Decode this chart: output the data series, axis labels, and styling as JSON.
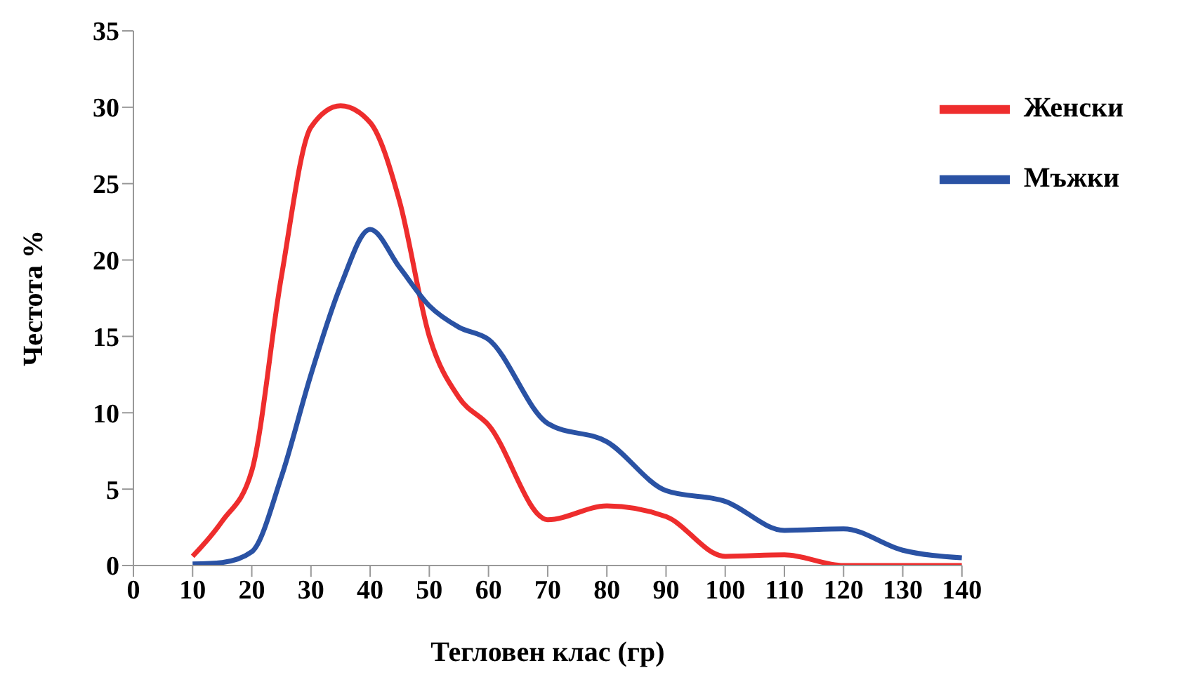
{
  "chart_data": {
    "type": "line",
    "xlabel": "Тегловен клас (гр)",
    "ylabel": "Честота %",
    "x": [
      10,
      15,
      20,
      25,
      30,
      35,
      40,
      45,
      50,
      55,
      60,
      70,
      80,
      90,
      100,
      110,
      120,
      130,
      140
    ],
    "series": [
      {
        "name": "Женски",
        "color": "#ee2d2d",
        "values": [
          0.6,
          2.9,
          6.2,
          18.9,
          28.7,
          30.1,
          29.0,
          23.8,
          15.0,
          11.0,
          9.2,
          3.0,
          3.9,
          3.2,
          0.6,
          0.7,
          0,
          0,
          0
        ]
      },
      {
        "name": "Мъжки",
        "color": "#2a52a4",
        "values": [
          0.1,
          0.2,
          0.9,
          5.8,
          12.5,
          18.3,
          22.0,
          19.5,
          17.0,
          15.6,
          14.8,
          9.3,
          8.1,
          4.9,
          4.2,
          2.3,
          2.4,
          1.0,
          0.5
        ]
      }
    ],
    "xlim": [
      0,
      140
    ],
    "xticks": [
      0,
      10,
      20,
      30,
      40,
      50,
      60,
      70,
      80,
      90,
      100,
      110,
      120,
      130,
      140
    ],
    "ylim": [
      0,
      35
    ],
    "yticks": [
      0,
      5,
      10,
      15,
      20,
      25,
      30,
      35
    ],
    "grid": false,
    "legend": "top right",
    "marker": "none",
    "line_style": "solid"
  }
}
